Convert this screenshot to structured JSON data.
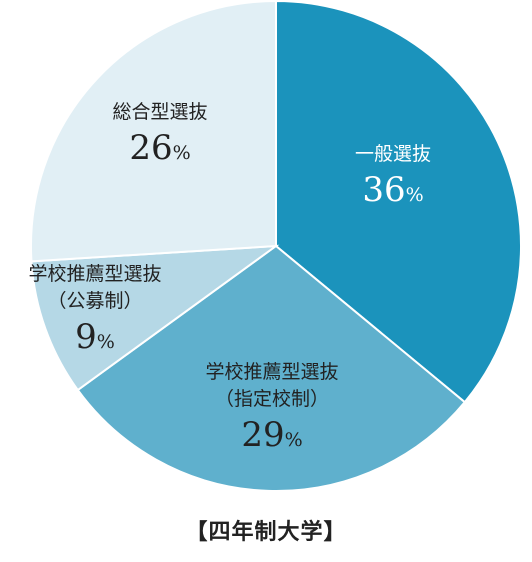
{
  "chart_data": {
    "type": "pie",
    "caption": "【四年制大学】",
    "unit": "%",
    "slices": [
      {
        "lines": [
          "一般選抜"
        ],
        "value": 36,
        "color": "#1b93bc",
        "text_color": "#ffffff"
      },
      {
        "lines": [
          "学校推薦型選抜",
          "（指定校制）"
        ],
        "value": 29,
        "color": "#5fb0cd",
        "text_color": "#222222"
      },
      {
        "lines": [
          "学校推薦型選抜",
          "（公募制）"
        ],
        "value": 9,
        "color": "#b5d8e6",
        "text_color": "#222222"
      },
      {
        "lines": [
          "総合型選抜"
        ],
        "value": 26,
        "color": "#e1eff5",
        "text_color": "#222222"
      }
    ]
  }
}
